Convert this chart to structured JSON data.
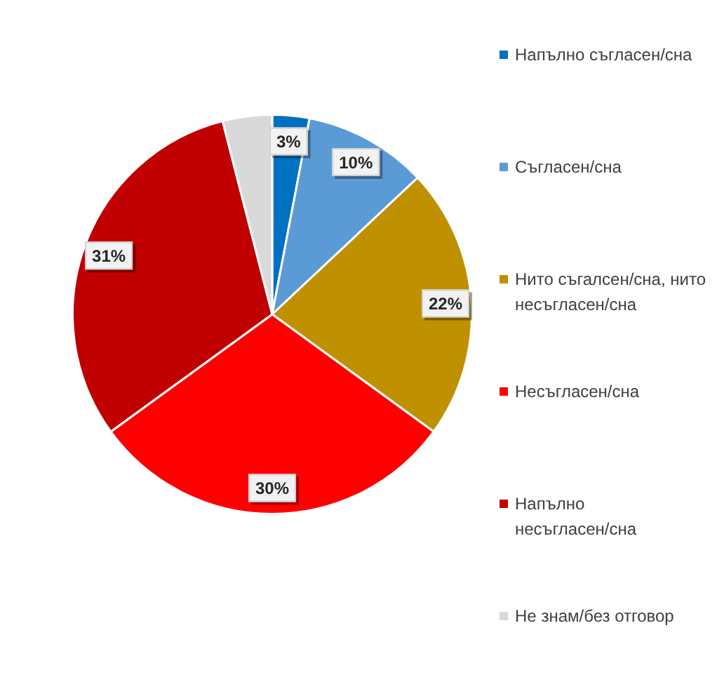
{
  "chart_data": {
    "type": "pie",
    "categories": [
      "Напълно съгласен/сна",
      "Съгласен/сна",
      "Нито съгалсен/сна, нито несъгласен/сна",
      "Несъгласен/сна",
      "Напълно несъгласен/сна",
      "Не знам/без отговор"
    ],
    "values": [
      3,
      10,
      22,
      30,
      31,
      4
    ],
    "value_labels": [
      "3%",
      "10%",
      "22%",
      "30%",
      "31%",
      null
    ],
    "colors": [
      "#0070c0",
      "#5b9bd5",
      "#bf9000",
      "#ff0000",
      "#c00000",
      "#d9d9d9"
    ],
    "legend": "right"
  }
}
